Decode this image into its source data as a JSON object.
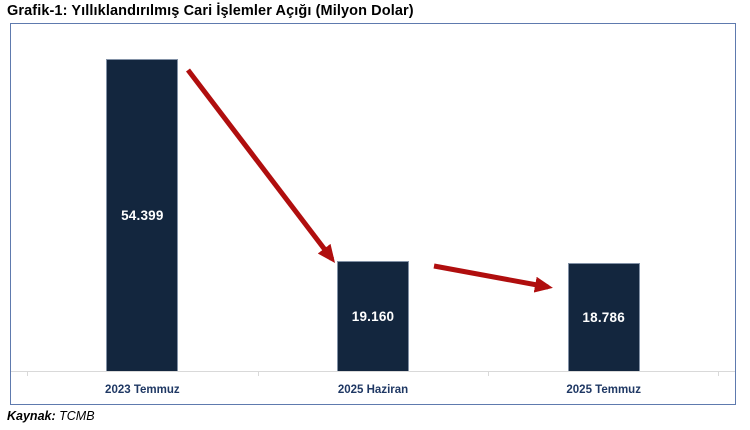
{
  "page": {
    "title": "Grafik-1: Yıllıklandırılmış Cari İşlemler Açığı (Milyon Dolar)",
    "source_label": "Kaynak:",
    "source_value": "TCMB"
  },
  "chart_data": {
    "type": "bar",
    "title": "Grafik-1: Yıllıklandırılmış Cari İşlemler Açığı (Milyon Dolar)",
    "unit": "Milyon Dolar",
    "categories": [
      "2023 Temmuz",
      "2025 Haziran",
      "2025 Temmuz"
    ],
    "values": [
      54399,
      19160,
      18786
    ],
    "value_labels": [
      "54.399",
      "19.160",
      "18.786"
    ],
    "ylim": [
      0,
      56000
    ],
    "grid": false,
    "legend": false,
    "colors": {
      "bar": "#13263E",
      "value_label": "#FFFFFF",
      "category_label": "#1F3864",
      "arrow": "#B00E0E",
      "chart_border": "#5E7AAE",
      "axis_line": "#D9D9D9"
    },
    "annotations": [
      {
        "name": "decline-arrow-1",
        "from_category": "2023 Temmuz",
        "to_category": "2025 Haziran"
      },
      {
        "name": "decline-arrow-2",
        "from_category": "2025 Haziran",
        "to_category": "2025 Temmuz"
      }
    ],
    "source": "Kaynak: TCMB"
  }
}
